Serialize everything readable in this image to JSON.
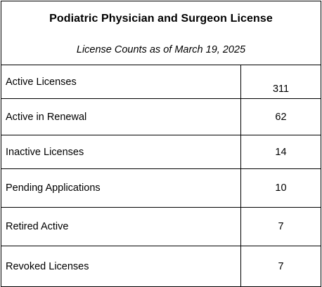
{
  "header": {
    "title": "Podiatric Physician and Surgeon License",
    "subtitle": "License Counts as of March 19, 2025"
  },
  "rows": [
    {
      "label": "Active Licenses",
      "value": "311"
    },
    {
      "label": "Active in Renewal",
      "value": "62"
    },
    {
      "label": "Inactive Licenses",
      "value": "14"
    },
    {
      "label": "Pending Applications",
      "value": "10"
    },
    {
      "label": "Retired Active",
      "value": "7"
    },
    {
      "label": "Revoked Licenses",
      "value": "7"
    }
  ]
}
